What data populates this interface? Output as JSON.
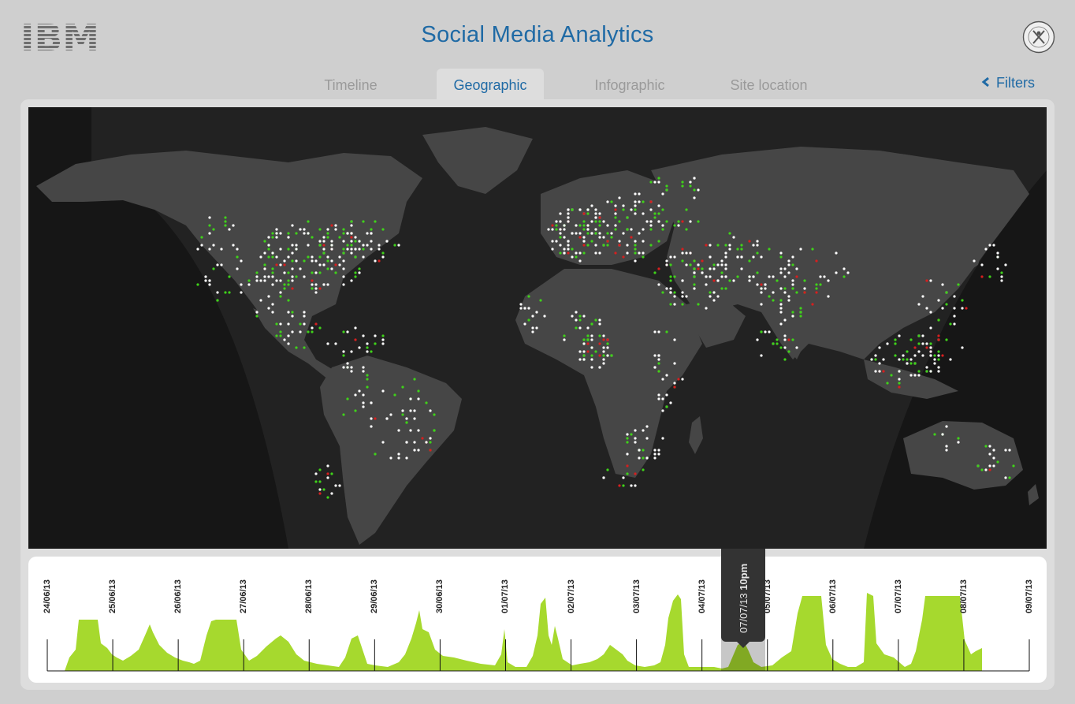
{
  "header": {
    "logo_text": "IBM",
    "title": "Social Media Analytics",
    "emblem_text": "THE CHAMPIONSHIPS WIMBLEDON"
  },
  "tabs": [
    {
      "label": "Timeline",
      "active": false
    },
    {
      "label": "Geographic",
      "active": true
    },
    {
      "label": "Infographic",
      "active": false
    },
    {
      "label": "Site location",
      "active": false
    }
  ],
  "filters": {
    "label": "Filters",
    "icon": "chevron-left-icon"
  },
  "colors": {
    "accent": "#1f6aa5",
    "map_background": "#161616",
    "land": "#444444",
    "point_white": "#ffffff",
    "point_green": "#3fd21a",
    "point_red": "#d61f1f",
    "volume_fill": "#a6d92e"
  },
  "timeline": {
    "dates": [
      "24/06/13",
      "25/06/13",
      "26/06/13",
      "27/06/13",
      "28/06/13",
      "29/06/13",
      "30/06/13",
      "01/07/13",
      "02/07/13",
      "03/07/13",
      "04/07/13",
      "05/07/13",
      "06/07/13",
      "07/07/13",
      "08/07/13",
      "09/07/13"
    ],
    "selected_date": "07/07/13",
    "selected_time": "10pm"
  }
}
